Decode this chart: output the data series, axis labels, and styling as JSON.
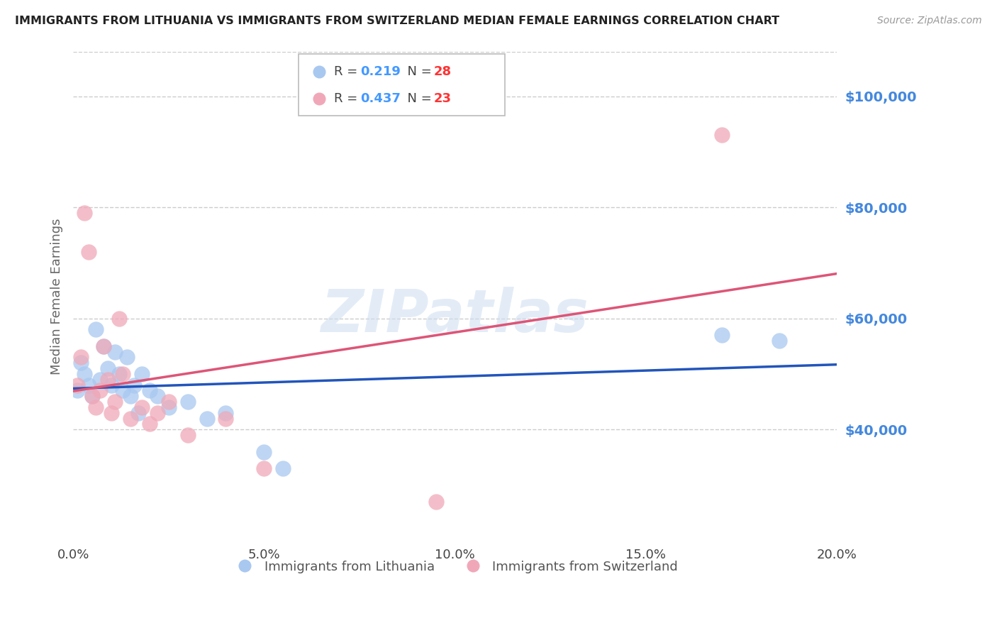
{
  "title": "IMMIGRANTS FROM LITHUANIA VS IMMIGRANTS FROM SWITZERLAND MEDIAN FEMALE EARNINGS CORRELATION CHART",
  "source": "Source: ZipAtlas.com",
  "ylabel": "Median Female Earnings",
  "xlim": [
    0.0,
    0.2
  ],
  "ylim": [
    20000,
    108000
  ],
  "yticks": [
    40000,
    60000,
    80000,
    100000
  ],
  "xticks": [
    0.0,
    0.05,
    0.1,
    0.15,
    0.2
  ],
  "xtick_labels": [
    "0.0%",
    "5.0%",
    "10.0%",
    "15.0%",
    "20.0%"
  ],
  "series_lithuania": {
    "color": "#a8c8f0",
    "line_color": "#2255bb",
    "x": [
      0.001,
      0.002,
      0.003,
      0.004,
      0.005,
      0.006,
      0.007,
      0.008,
      0.009,
      0.01,
      0.011,
      0.012,
      0.013,
      0.014,
      0.015,
      0.016,
      0.017,
      0.018,
      0.02,
      0.022,
      0.025,
      0.03,
      0.035,
      0.04,
      0.05,
      0.055,
      0.17,
      0.185
    ],
    "y": [
      47000,
      52000,
      50000,
      48000,
      46000,
      58000,
      49000,
      55000,
      51000,
      48000,
      54000,
      50000,
      47000,
      53000,
      46000,
      48000,
      43000,
      50000,
      47000,
      46000,
      44000,
      45000,
      42000,
      43000,
      36000,
      33000,
      57000,
      56000
    ]
  },
  "series_switzerland": {
    "color": "#f0a8b8",
    "line_color": "#dd5577",
    "x": [
      0.001,
      0.002,
      0.003,
      0.004,
      0.005,
      0.006,
      0.007,
      0.008,
      0.009,
      0.01,
      0.011,
      0.012,
      0.013,
      0.015,
      0.018,
      0.02,
      0.022,
      0.025,
      0.03,
      0.04,
      0.05,
      0.095,
      0.17
    ],
    "y": [
      48000,
      53000,
      79000,
      72000,
      46000,
      44000,
      47000,
      55000,
      49000,
      43000,
      45000,
      60000,
      50000,
      42000,
      44000,
      41000,
      43000,
      45000,
      39000,
      42000,
      33000,
      27000,
      93000
    ]
  },
  "legend_r1": {
    "r_val": "0.219",
    "n_val": "28",
    "circle_color": "#a8c8f0"
  },
  "legend_r2": {
    "r_val": "0.437",
    "n_val": "23",
    "circle_color": "#f0a8b8"
  },
  "bottom_legend": [
    {
      "label": "Immigrants from Lithuania",
      "color": "#a8c8f0"
    },
    {
      "label": "Immigrants from Switzerland",
      "color": "#f0a8b8"
    }
  ],
  "watermark": "ZIPatlas",
  "background_color": "#ffffff",
  "grid_color": "#cccccc",
  "title_color": "#222222",
  "axis_label_color": "#666666",
  "ytick_color": "#4488dd",
  "xtick_color": "#444444",
  "r_color": "#4499ff",
  "n_color": "#ff3333"
}
